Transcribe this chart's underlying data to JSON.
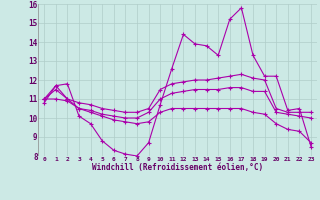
{
  "background_color": "#cce9e5",
  "line_color": "#aa00aa",
  "grid_color": "#b0cdc9",
  "xlabel": "Windchill (Refroidissement éolien,°C)",
  "xlabel_color": "#660066",
  "xlim": [
    -0.5,
    23.5
  ],
  "ylim": [
    8,
    16
  ],
  "yticks": [
    8,
    9,
    10,
    11,
    12,
    13,
    14,
    15,
    16
  ],
  "xticks": [
    0,
    1,
    2,
    3,
    4,
    5,
    6,
    7,
    8,
    9,
    10,
    11,
    12,
    13,
    14,
    15,
    16,
    17,
    18,
    19,
    20,
    21,
    22,
    23
  ],
  "series1_x": [
    0,
    1,
    2,
    3,
    4,
    5,
    6,
    7,
    8,
    9,
    10,
    11,
    12,
    13,
    14,
    15,
    16,
    17,
    18,
    19,
    20,
    21,
    22,
    23
  ],
  "series1_y": [
    10.8,
    11.7,
    11.8,
    10.1,
    9.7,
    8.8,
    8.3,
    8.1,
    8.0,
    8.7,
    10.7,
    12.6,
    14.4,
    13.9,
    13.8,
    13.3,
    15.2,
    15.8,
    13.3,
    12.2,
    12.2,
    10.4,
    10.5,
    8.5
  ],
  "series2_x": [
    0,
    1,
    2,
    3,
    4,
    5,
    6,
    7,
    8,
    9,
    10,
    11,
    12,
    13,
    14,
    15,
    16,
    17,
    18,
    19,
    20,
    21,
    22,
    23
  ],
  "series2_y": [
    11.0,
    11.7,
    11.0,
    10.8,
    10.7,
    10.5,
    10.4,
    10.3,
    10.3,
    10.5,
    11.5,
    11.8,
    11.9,
    12.0,
    12.0,
    12.1,
    12.2,
    12.3,
    12.1,
    12.0,
    10.5,
    10.3,
    10.3,
    10.3
  ],
  "series3_x": [
    0,
    1,
    2,
    3,
    4,
    5,
    6,
    7,
    8,
    9,
    10,
    11,
    12,
    13,
    14,
    15,
    16,
    17,
    18,
    19,
    20,
    21,
    22,
    23
  ],
  "series3_y": [
    11.0,
    11.5,
    11.0,
    10.5,
    10.4,
    10.2,
    10.1,
    10.0,
    10.0,
    10.3,
    11.0,
    11.3,
    11.4,
    11.5,
    11.5,
    11.5,
    11.6,
    11.6,
    11.4,
    11.4,
    10.3,
    10.2,
    10.1,
    10.0
  ],
  "series4_x": [
    0,
    1,
    2,
    3,
    4,
    5,
    6,
    7,
    8,
    9,
    10,
    11,
    12,
    13,
    14,
    15,
    16,
    17,
    18,
    19,
    20,
    21,
    22,
    23
  ],
  "series4_y": [
    11.0,
    11.0,
    10.9,
    10.5,
    10.3,
    10.1,
    9.9,
    9.8,
    9.7,
    9.8,
    10.3,
    10.5,
    10.5,
    10.5,
    10.5,
    10.5,
    10.5,
    10.5,
    10.3,
    10.2,
    9.7,
    9.4,
    9.3,
    8.7
  ]
}
